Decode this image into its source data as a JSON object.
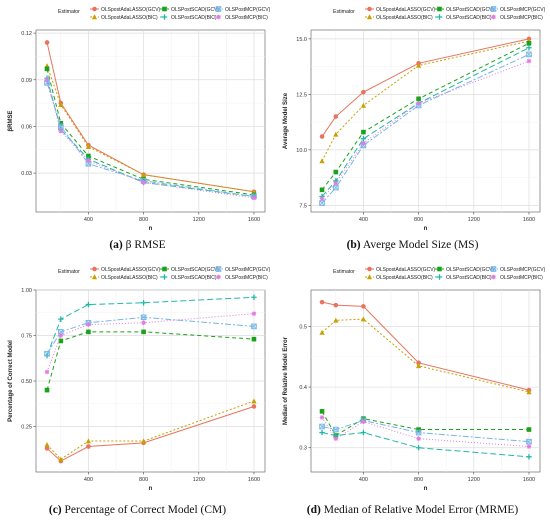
{
  "legend_title": "Estimator",
  "series_styles": [
    {
      "name": "OLSpostAdaLASSO(GCV)",
      "color": "#e8735f",
      "dash": "",
      "marker": "circle"
    },
    {
      "name": "OLSpostAdaLASSO(BIC)",
      "color": "#c9a000",
      "dash": "2,2",
      "marker": "triangle"
    },
    {
      "name": "OLSPostSCAD(GCV)",
      "color": "#1aa31a",
      "dash": "4,3",
      "marker": "square"
    },
    {
      "name": "OLSPostSCAD(BIC)",
      "color": "#22b8a8",
      "dash": "6,3",
      "marker": "plus"
    },
    {
      "name": "OLSPostMCP(GCV)",
      "color": "#74b6e8",
      "dash": "6,2,2,2",
      "marker": "squarecross"
    },
    {
      "name": "OLSPostMCP(BIC)",
      "color": "#e07be0",
      "dash": "1,2",
      "marker": "star"
    }
  ],
  "chart_data": [
    {
      "type": "line",
      "caption_label": "(a)",
      "caption_text": "β RMSE",
      "xlabel": "n",
      "ylabel": "βRMSE",
      "x": [
        100,
        200,
        400,
        800,
        1600
      ],
      "xlim": [
        20,
        1680
      ],
      "ylim": [
        0.005,
        0.122
      ],
      "xticks": [
        400,
        800,
        1200,
        1600
      ],
      "yticks": [
        0.03,
        0.06,
        0.09,
        0.12
      ],
      "ytick_labels": [
        "0.03",
        "0.06",
        "0.09",
        "0.12"
      ],
      "series": [
        {
          "name": "OLSpostAdaLASSO(GCV)",
          "values": [
            0.114,
            0.075,
            0.048,
            0.029,
            0.018
          ]
        },
        {
          "name": "OLSpostAdaLASSO(BIC)",
          "values": [
            0.099,
            0.074,
            0.047,
            0.029,
            0.018
          ]
        },
        {
          "name": "OLSPostSCAD(GCV)",
          "values": [
            0.097,
            0.062,
            0.041,
            0.026,
            0.016
          ]
        },
        {
          "name": "OLSPostSCAD(BIC)",
          "values": [
            0.091,
            0.058,
            0.039,
            0.024,
            0.015
          ]
        },
        {
          "name": "OLSPostMCP(GCV)",
          "values": [
            0.088,
            0.06,
            0.036,
            0.025,
            0.015
          ]
        },
        {
          "name": "OLSPostMCP(BIC)",
          "values": [
            0.09,
            0.057,
            0.038,
            0.024,
            0.014
          ]
        }
      ]
    },
    {
      "type": "line",
      "caption_label": "(b)",
      "caption_text": "Averge Model Size (MS)",
      "xlabel": "n",
      "ylabel": "Average Model Size",
      "x": [
        100,
        200,
        400,
        800,
        1600
      ],
      "xlim": [
        20,
        1680
      ],
      "ylim": [
        7.2,
        15.4
      ],
      "xticks": [
        400,
        800,
        1200,
        1600
      ],
      "yticks": [
        7.5,
        10.0,
        12.5,
        15.0
      ],
      "ytick_labels": [
        "7.5",
        "10.0",
        "12.5",
        "15.0"
      ],
      "series": [
        {
          "name": "OLSpostAdaLASSO(GCV)",
          "values": [
            10.6,
            11.5,
            12.6,
            13.9,
            15.0
          ]
        },
        {
          "name": "OLSpostAdaLASSO(BIC)",
          "values": [
            9.5,
            10.7,
            12.0,
            13.8,
            14.9
          ]
        },
        {
          "name": "OLSPostSCAD(GCV)",
          "values": [
            8.2,
            9.0,
            10.8,
            12.3,
            14.8
          ]
        },
        {
          "name": "OLSPostSCAD(BIC)",
          "values": [
            7.9,
            8.6,
            10.5,
            12.1,
            14.6
          ]
        },
        {
          "name": "OLSPostMCP(GCV)",
          "values": [
            7.6,
            8.3,
            10.2,
            12.0,
            14.3
          ]
        },
        {
          "name": "OLSPostMCP(BIC)",
          "values": [
            7.8,
            8.5,
            10.3,
            12.1,
            14.0
          ]
        }
      ]
    },
    {
      "type": "line",
      "caption_label": "(c)",
      "caption_text": "Percentage of Correct Model (CM)",
      "xlabel": "n",
      "ylabel": "Percentage of Correct Model",
      "x": [
        100,
        200,
        400,
        800,
        1600
      ],
      "xlim": [
        20,
        1680
      ],
      "ylim": [
        0.0,
        1.0
      ],
      "xticks": [
        400,
        800,
        1200,
        1600
      ],
      "yticks": [
        0.25,
        0.5,
        0.75,
        1.0
      ],
      "ytick_labels": [
        "0.25",
        "0.50",
        "0.75",
        "1.00"
      ],
      "series": [
        {
          "name": "OLSpostAdaLASSO(GCV)",
          "values": [
            0.13,
            0.06,
            0.14,
            0.16,
            0.36
          ]
        },
        {
          "name": "OLSpostAdaLASSO(BIC)",
          "values": [
            0.15,
            0.07,
            0.17,
            0.17,
            0.39
          ]
        },
        {
          "name": "OLSPostSCAD(GCV)",
          "values": [
            0.45,
            0.72,
            0.77,
            0.77,
            0.73
          ]
        },
        {
          "name": "OLSPostSCAD(BIC)",
          "values": [
            0.64,
            0.84,
            0.92,
            0.93,
            0.96
          ]
        },
        {
          "name": "OLSPostMCP(GCV)",
          "values": [
            0.65,
            0.77,
            0.82,
            0.85,
            0.8
          ]
        },
        {
          "name": "OLSPostMCP(BIC)",
          "values": [
            0.55,
            0.75,
            0.81,
            0.82,
            0.87
          ]
        }
      ]
    },
    {
      "type": "line",
      "caption_label": "(d)",
      "caption_text": "Median of Relative Model Error (MRME)",
      "xlabel": "n",
      "ylabel": "Median of Relative Model Error",
      "x": [
        100,
        200,
        400,
        800,
        1600
      ],
      "xlim": [
        20,
        1680
      ],
      "ylim": [
        0.26,
        0.56
      ],
      "xticks": [
        400,
        800,
        1200,
        1600
      ],
      "yticks": [
        0.3,
        0.4,
        0.5
      ],
      "ytick_labels": [
        "0.3",
        "0.4",
        "0.5"
      ],
      "series": [
        {
          "name": "OLSpostAdaLASSO(GCV)",
          "values": [
            0.54,
            0.535,
            0.533,
            0.44,
            0.395
          ]
        },
        {
          "name": "OLSpostAdaLASSO(BIC)",
          "values": [
            0.49,
            0.51,
            0.512,
            0.435,
            0.392
          ]
        },
        {
          "name": "OLSPostSCAD(GCV)",
          "values": [
            0.36,
            0.32,
            0.348,
            0.33,
            0.33
          ]
        },
        {
          "name": "OLSPostSCAD(BIC)",
          "values": [
            0.325,
            0.32,
            0.325,
            0.3,
            0.285
          ]
        },
        {
          "name": "OLSPostMCP(GCV)",
          "values": [
            0.335,
            0.33,
            0.345,
            0.325,
            0.31
          ]
        },
        {
          "name": "OLSPostMCP(BIC)",
          "values": [
            0.35,
            0.315,
            0.343,
            0.315,
            0.302
          ]
        }
      ]
    }
  ]
}
